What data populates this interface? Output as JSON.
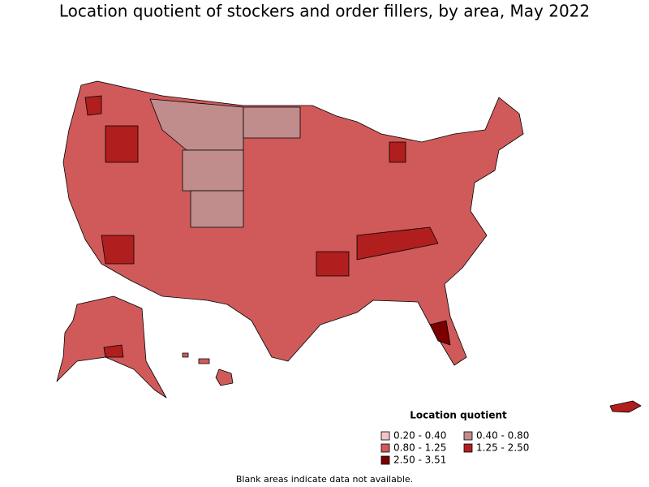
{
  "title": "Location quotient of stockers and order fillers, by area, May 2022",
  "legend": {
    "title": "Location quotient",
    "items": [
      {
        "label": "0.20 - 0.40",
        "color": "#f2c6c6"
      },
      {
        "label": "0.40 - 0.80",
        "color": "#c08c8c"
      },
      {
        "label": "0.80 - 1.25",
        "color": "#d05a5a"
      },
      {
        "label": "1.25 - 2.50",
        "color": "#b01e1e"
      },
      {
        "label": "2.50 - 3.51",
        "color": "#7a0000"
      }
    ]
  },
  "footnote": "Blank areas indicate data not available."
}
